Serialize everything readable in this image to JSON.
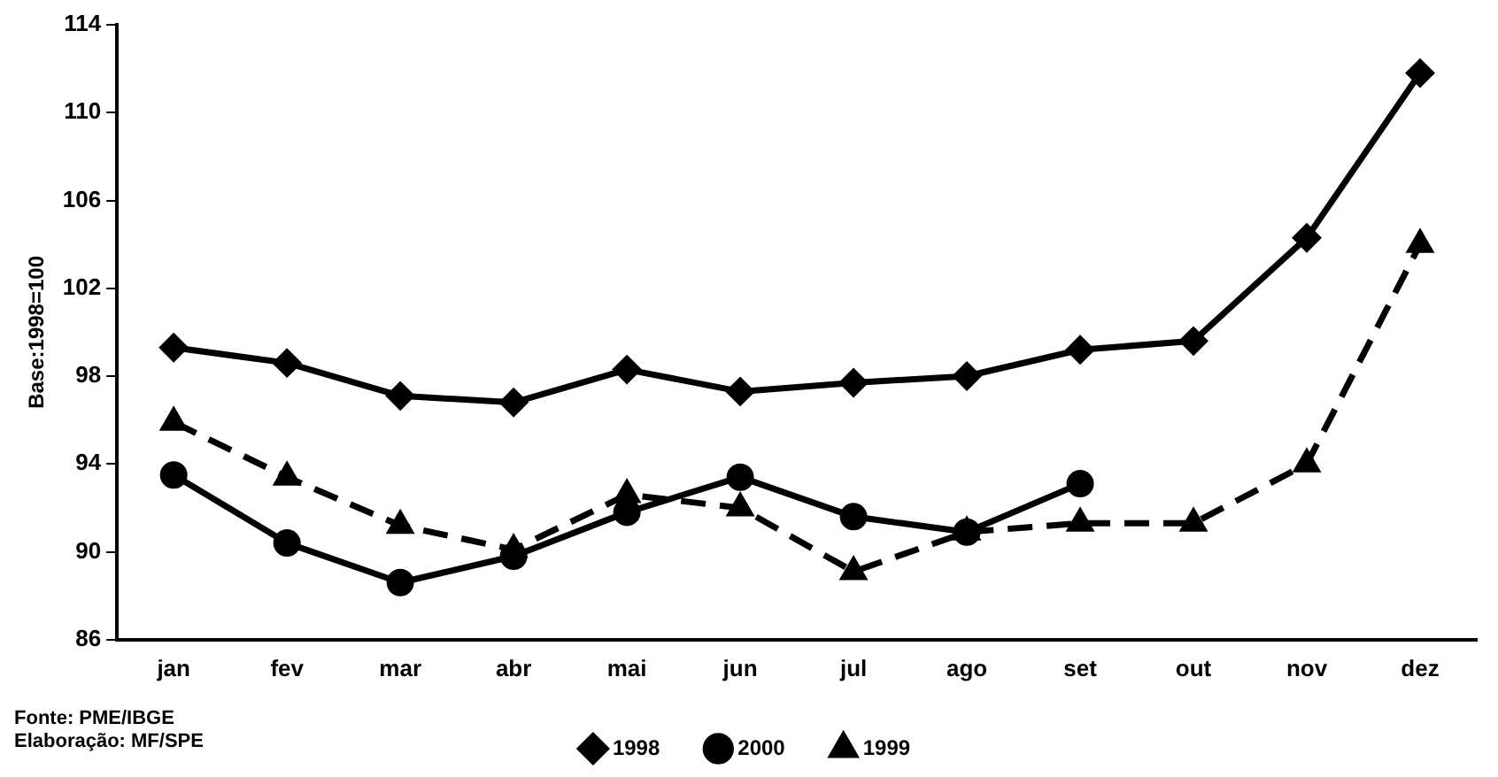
{
  "chart_data": {
    "type": "line",
    "ylabel": "Base:1998=100",
    "categories": [
      "jan",
      "fev",
      "mar",
      "abr",
      "mai",
      "jun",
      "jul",
      "ago",
      "set",
      "out",
      "nov",
      "dez"
    ],
    "series": [
      {
        "name": "1998",
        "color": "#000000",
        "marker": "diamond",
        "line_style": "solid",
        "values": [
          99.3,
          98.6,
          97.1,
          96.8,
          98.3,
          97.3,
          97.7,
          98.0,
          99.2,
          99.6,
          104.3,
          111.8
        ]
      },
      {
        "name": "2000",
        "color": "#000000",
        "marker": "circle",
        "line_style": "solid",
        "values": [
          93.5,
          90.4,
          88.6,
          89.8,
          91.8,
          93.4,
          91.6,
          90.9,
          93.1,
          null,
          null,
          null
        ]
      },
      {
        "name": "1999",
        "color": "#000000",
        "marker": "triangle",
        "line_style": "dashed",
        "values": [
          95.9,
          93.4,
          91.2,
          90.1,
          92.6,
          92.0,
          89.1,
          90.9,
          91.3,
          91.3,
          94.0,
          104.0
        ]
      }
    ],
    "ylim": [
      86,
      114
    ],
    "yticks": [
      86,
      90,
      94,
      98,
      102,
      106,
      110,
      114
    ],
    "grid": false,
    "legend": "bottom",
    "annotations": [
      "Fonte: PME/IBGE",
      "Elaboração: MF/SPE"
    ]
  }
}
